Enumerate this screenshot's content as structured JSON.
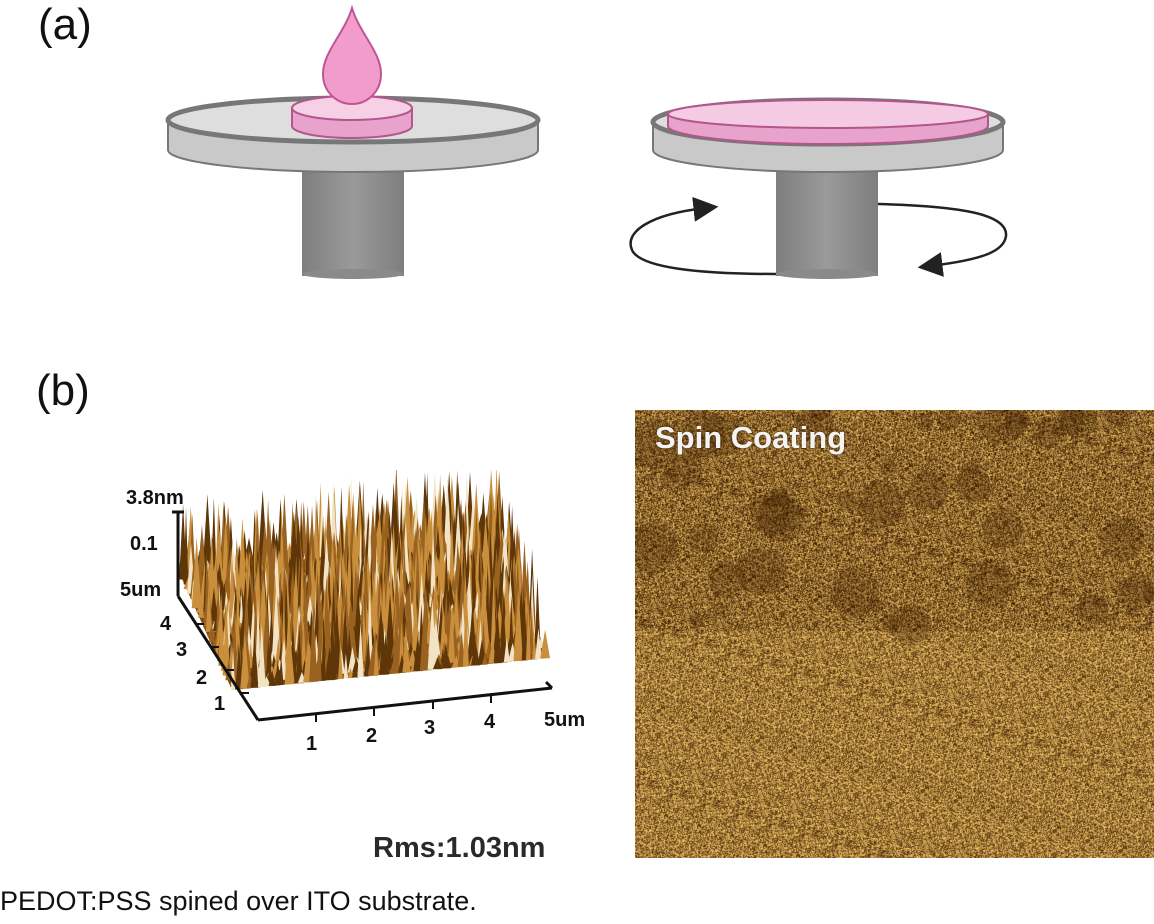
{
  "panel_a": {
    "label": "(a)"
  },
  "panel_b": {
    "label": "(b)",
    "z_max_label": "3.8nm",
    "z_tick_label": "0.1",
    "y_axis_max_label": "5um",
    "y_ticks": [
      "4",
      "3",
      "2",
      "1"
    ],
    "x_ticks": [
      "1",
      "2",
      "3",
      "4"
    ],
    "x_axis_max_label": "5um",
    "rms_label": "Rms:1.03nm",
    "afm_image_title": "Spin Coating"
  },
  "caption": "PEDOT:PSS spined over ITO substrate.",
  "colors": {
    "plate_top": "#dcdcdc",
    "plate_rim": "#9a9a9a",
    "spindle": "#8c8c8c",
    "film_pink": "#e9a6d0",
    "film_dark": "#b4508f",
    "drop_pink": "#f095c9",
    "afm_dark": "#5a3000",
    "afm_light": "#e6c27a"
  },
  "icons": [
    "droplet-icon",
    "rotation-arrow-icon"
  ]
}
